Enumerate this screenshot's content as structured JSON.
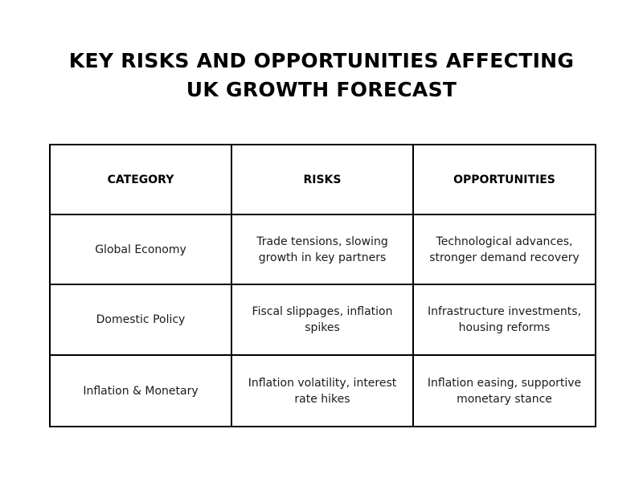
{
  "title": {
    "line1": "KEY RISKS AND OPPORTUNITIES AFFECTING",
    "line2": "UK GROWTH FORECAST"
  },
  "table": {
    "headers": [
      "CATEGORY",
      "RISKS",
      "OPPORTUNITIES"
    ],
    "rows": [
      {
        "category": "Global Economy",
        "risks": "Trade tensions, slowing growth in key partners",
        "opportunities": "Technological advances, stronger demand recovery"
      },
      {
        "category": "Domestic Policy",
        "risks": "Fiscal slippages, inflation spikes",
        "opportunities": "Infrastructure investments, housing reforms"
      },
      {
        "category": "Inflation & Monetary",
        "risks": "Inflation volatility, interest rate hikes",
        "opportunities": "Inflation easing, supportive monetary stance"
      }
    ]
  }
}
